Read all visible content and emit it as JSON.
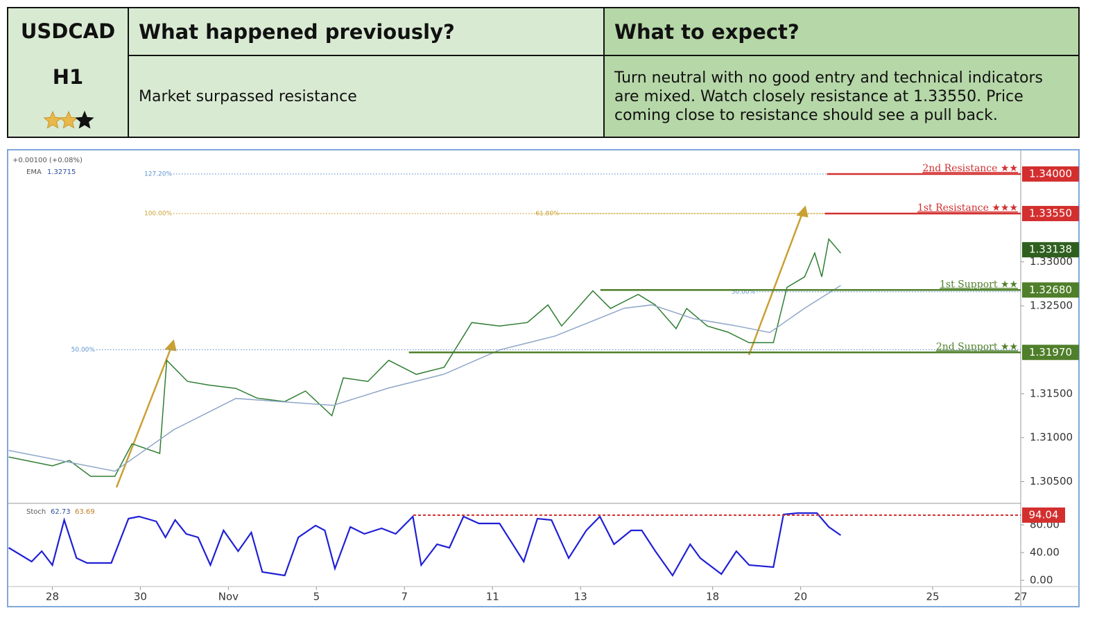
{
  "table": {
    "pair": "USDCAD",
    "timeframe": "H1",
    "rating": 2,
    "rating_max": 3,
    "headers": [
      "What happened previously?",
      "What to expect?"
    ],
    "cells": [
      "Market surpassed resistance",
      "Turn neutral with no good entry and technical indicators are mixed. Watch closely resistance at 1.33550. Price coming close to resistance should see a pull back."
    ]
  },
  "chart_data": [
    {
      "type": "line",
      "change_label": "+0.00100 (+0.08%)",
      "indicator": "EMA",
      "indicator_value": "1.32715",
      "xlim": [
        -1,
        22
      ],
      "ylim": [
        1.3026,
        1.3426
      ],
      "yticks": [
        {
          "value": 1.305,
          "label": "1.30500"
        },
        {
          "value": 1.31,
          "label": "1.31000"
        },
        {
          "value": 1.315,
          "label": "1.31500"
        },
        {
          "value": 1.325,
          "label": "1.32500"
        },
        {
          "value": 1.33,
          "label": "1.33000"
        }
      ],
      "series": [
        {
          "name": "USDCAD",
          "color": "#2e7d32",
          "x": [
            -0.99,
            0,
            0.39,
            0.87,
            1.42,
            1.81,
            2.44,
            2.6,
            3.07,
            3.54,
            4.17,
            4.65,
            5.28,
            5.75,
            6.35,
            6.61,
            7.17,
            7.64,
            8.27,
            8.9,
            9.53,
            10.16,
            10.79,
            11.26,
            11.57,
            12.28,
            12.68,
            13.31,
            13.7,
            14.17,
            14.41,
            14.88,
            15.35,
            15.83,
            16.38,
            16.69,
            17.09,
            17.32,
            17.48,
            17.64,
            17.91
          ],
          "values": [
            1.3078,
            1.3068,
            1.3074,
            1.3056,
            1.3056,
            1.3093,
            1.3082,
            1.3188,
            1.3164,
            1.316,
            1.3156,
            1.3145,
            1.3141,
            1.3153,
            1.3125,
            1.3168,
            1.3164,
            1.3188,
            1.3172,
            1.318,
            1.3231,
            1.3227,
            1.3231,
            1.3251,
            1.3227,
            1.3267,
            1.3247,
            1.3263,
            1.3251,
            1.3224,
            1.3247,
            1.3227,
            1.322,
            1.3208,
            1.3208,
            1.3271,
            1.3283,
            1.331,
            1.3283,
            1.3326,
            1.331
          ]
        },
        {
          "name": "EMA",
          "color": "#8fa6c9",
          "x": [
            -0.99,
            1.42,
            2.76,
            4.17,
            6.38,
            7.64,
            8.9,
            10.16,
            11.42,
            12.99,
            13.62,
            14.57,
            15.51,
            16.3,
            17.09,
            17.91
          ],
          "values": [
            1.30855,
            1.30618,
            1.31091,
            1.31446,
            1.31368,
            1.31565,
            1.31722,
            1.31998,
            1.32156,
            1.32472,
            1.32511,
            1.32353,
            1.32274,
            1.32196,
            1.32472,
            1.32732
          ]
        }
      ],
      "current": {
        "value": 1.33138,
        "label": "1.33138",
        "color": "#2f5f1e"
      },
      "levels": [
        {
          "name": "2nd Resistance ★★",
          "value": 1.34,
          "label": "1.34000",
          "from": 17.6,
          "color": "#d32f2f"
        },
        {
          "name": "1st Resistance ★★★",
          "value": 1.3355,
          "label": "1.33550",
          "from": 17.55,
          "color": "#d32f2f"
        },
        {
          "name": "1st Support ★★",
          "value": 1.3268,
          "label": "1.32680",
          "from": 12.45,
          "color": "#4f7f2a"
        },
        {
          "name": "2nd Support ★★",
          "value": 1.3197,
          "label": "1.31970",
          "from": 8.1,
          "color": "#4f7f2a"
        }
      ],
      "fib_lines": [
        {
          "label": "127.20%",
          "value": 1.34,
          "from": 2.75,
          "color": "#5b8fd0"
        },
        {
          "label": "100.00%",
          "value": 1.3355,
          "from": 2.75,
          "color": "#c9a032"
        },
        {
          "label": "61.80%",
          "value": 1.3355,
          "from": 11.55,
          "color": "#c9a032"
        },
        {
          "label": "50.00%",
          "value": 1.32,
          "from": 1.0,
          "color": "#5b8fd0"
        },
        {
          "label": "50.00%",
          "value": 1.3266,
          "from": 16.0,
          "color": "#5b8fd0"
        }
      ]
    },
    {
      "type": "line",
      "indicator": "Stoch",
      "indicator_values": [
        "62.73",
        "63.69"
      ],
      "xlim": [
        -1,
        22
      ],
      "ylim": [
        -8,
        110
      ],
      "yticks": [
        {
          "value": 0,
          "label": "0.00"
        },
        {
          "value": 40,
          "label": "40.00"
        },
        {
          "value": 80,
          "label": "80.00"
        }
      ],
      "xticks": [
        {
          "value": 0,
          "label": "28"
        },
        {
          "value": 2,
          "label": "30"
        },
        {
          "value": 4,
          "label": "Nov"
        },
        {
          "value": 6,
          "label": "5"
        },
        {
          "value": 8,
          "label": "7"
        },
        {
          "value": 10,
          "label": "11"
        },
        {
          "value": 12,
          "label": "13"
        },
        {
          "value": 15,
          "label": "18"
        },
        {
          "value": 17,
          "label": "20"
        },
        {
          "value": 20,
          "label": "25"
        },
        {
          "value": 22,
          "label": "27"
        }
      ],
      "series": [
        {
          "name": "Stoch",
          "color": "#1f1fd6",
          "x": [
            -0.99,
            -0.47,
            -0.24,
            0,
            0.27,
            0.55,
            0.79,
            1.34,
            1.73,
            1.97,
            2.36,
            2.57,
            2.79,
            3.04,
            3.31,
            3.59,
            3.89,
            4.22,
            4.52,
            4.77,
            5.28,
            5.59,
            5.98,
            6.19,
            6.42,
            6.77,
            7.09,
            7.48,
            7.8,
            8.19,
            8.38,
            8.74,
            9.02,
            9.34,
            9.69,
            10.16,
            10.71,
            11.02,
            11.34,
            11.73,
            12.13,
            12.44,
            12.76,
            13.15,
            13.39,
            13.7,
            14.09,
            14.49,
            14.72,
            15.2,
            15.54,
            15.83,
            16.38,
            16.61,
            16.93,
            17.37,
            17.64,
            17.91
          ],
          "values": [
            47,
            27,
            42,
            22,
            87,
            32,
            25,
            25,
            89,
            92,
            85,
            62,
            87,
            67,
            62,
            22,
            72,
            42,
            69,
            12,
            7,
            62,
            79,
            72,
            17,
            77,
            67,
            75,
            67,
            92,
            22,
            52,
            47,
            92,
            82,
            82,
            27,
            89,
            87,
            32,
            72,
            92,
            52,
            72,
            72,
            42,
            7,
            52,
            32,
            9,
            42,
            22,
            19,
            95,
            97,
            97,
            77,
            65
          ]
        }
      ],
      "level": {
        "value": 94.04,
        "label": "94.04",
        "from": 8.2,
        "color": "#d32f2f"
      }
    }
  ]
}
